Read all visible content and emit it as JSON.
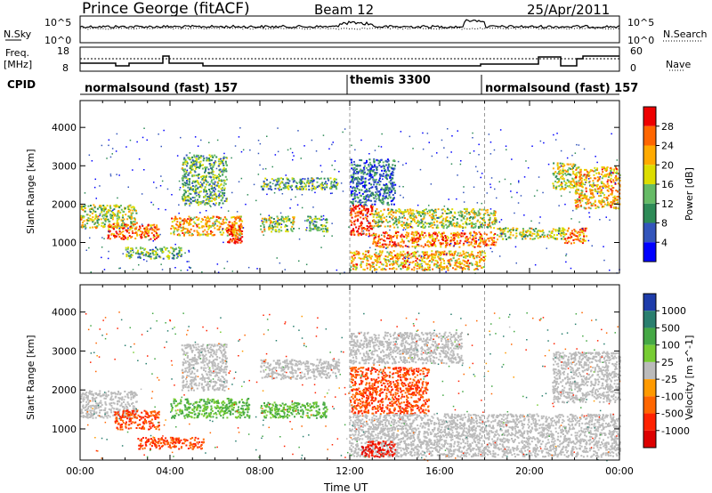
{
  "header": {
    "station": "Prince George (fitACF)",
    "beam": "Beam 12",
    "date": "25/Apr/2011"
  },
  "noise_panel": {
    "left_label": "N.Sky",
    "left_ticks": [
      "10^5",
      "10^0"
    ],
    "right_label": "N.Search",
    "right_ticks": [
      "10^5",
      "10^0"
    ]
  },
  "freq_panel": {
    "left_label_1": "Freq.",
    "left_label_2": "[MHz]",
    "left_ticks": [
      "18",
      "8"
    ],
    "right_label": "Nave",
    "right_ticks": [
      "60",
      "0"
    ]
  },
  "cpid": {
    "label": "CPID",
    "segments": [
      {
        "name": "normalsound (fast) 157",
        "start": 0,
        "end": 12
      },
      {
        "name": "themis 3300",
        "start": 12,
        "end": 18
      },
      {
        "name": "normalsound (fast) 157",
        "start": 18,
        "end": 24
      }
    ]
  },
  "colors": {
    "power": [
      "#0000ff",
      "#3355bb",
      "#2e8b57",
      "#66bb66",
      "#dddd00",
      "#ffaa00",
      "#ff6600",
      "#ee0000"
    ],
    "velocity": [
      "#1e3caa",
      "#2a7f6f",
      "#45a845",
      "#77cc33",
      "#bbbbbb",
      "#ff9a00",
      "#ff6600",
      "#ff2200",
      "#dd0000"
    ]
  },
  "chart_data": [
    {
      "type": "heatmap",
      "title": "",
      "xlabel": "Time UT",
      "ylabel": "Slant Range [km]",
      "xlim": [
        0,
        24
      ],
      "ylim": [
        200,
        4700
      ],
      "x_ticks": [
        "00:00",
        "04:00",
        "08:00",
        "12:00",
        "16:00",
        "20:00",
        "00:00"
      ],
      "y_ticks": [
        "1000",
        "2000",
        "3000",
        "4000"
      ],
      "colorbar": {
        "label": "Power [dB]",
        "ticks": [
          "28",
          "24",
          "20",
          "16",
          "12",
          "8",
          "4"
        ],
        "range": [
          0,
          30
        ]
      },
      "regions": [
        {
          "t0": 0.0,
          "t1": 2.5,
          "r0": 1400,
          "r1": 2000,
          "value": 16
        },
        {
          "t0": 1.2,
          "t1": 3.5,
          "r0": 1100,
          "r1": 1500,
          "value": 24
        },
        {
          "t0": 2.0,
          "t1": 4.5,
          "r0": 600,
          "r1": 900,
          "value": 12
        },
        {
          "t0": 4.0,
          "t1": 7.2,
          "r0": 1200,
          "r1": 1700,
          "value": 20
        },
        {
          "t0": 6.5,
          "t1": 7.2,
          "r0": 1000,
          "r1": 1500,
          "value": 28
        },
        {
          "t0": 4.5,
          "t1": 6.5,
          "r0": 2000,
          "r1": 3300,
          "value": 12
        },
        {
          "t0": 8.0,
          "t1": 11.5,
          "r0": 2400,
          "r1": 2700,
          "value": 12
        },
        {
          "t0": 8.0,
          "t1": 9.5,
          "r0": 1300,
          "r1": 1700,
          "value": 16
        },
        {
          "t0": 10.0,
          "t1": 11.0,
          "r0": 1300,
          "r1": 1700,
          "value": 12
        },
        {
          "t0": 12.0,
          "t1": 13.0,
          "r0": 1200,
          "r1": 2000,
          "value": 28
        },
        {
          "t0": 12.0,
          "t1": 14.0,
          "r0": 2000,
          "r1": 3200,
          "value": 8
        },
        {
          "t0": 13.0,
          "t1": 18.5,
          "r0": 1400,
          "r1": 1900,
          "value": 16
        },
        {
          "t0": 13.0,
          "t1": 18.5,
          "r0": 900,
          "r1": 1300,
          "value": 24
        },
        {
          "t0": 12.0,
          "t1": 18.0,
          "r0": 300,
          "r1": 800,
          "value": 20
        },
        {
          "t0": 18.5,
          "t1": 21.5,
          "r0": 1100,
          "r1": 1400,
          "value": 16
        },
        {
          "t0": 21.0,
          "t1": 22.0,
          "r0": 2400,
          "r1": 3100,
          "value": 16
        },
        {
          "t0": 22.0,
          "t1": 24.0,
          "r0": 1900,
          "r1": 3000,
          "value": 20
        },
        {
          "t0": 21.5,
          "t1": 22.5,
          "r0": 1000,
          "r1": 1400,
          "value": 24
        }
      ]
    },
    {
      "type": "heatmap",
      "title": "",
      "xlabel": "Time UT",
      "ylabel": "Slant Range [km]",
      "xlim": [
        0,
        24
      ],
      "ylim": [
        200,
        4700
      ],
      "x_ticks": [
        "00:00",
        "04:00",
        "08:00",
        "12:00",
        "16:00",
        "20:00",
        "00:00"
      ],
      "y_ticks": [
        "1000",
        "2000",
        "3000",
        "4000"
      ],
      "colorbar": {
        "label": "Velocity [m s^-1]",
        "ticks": [
          "1000",
          "500",
          "100",
          "25",
          "-25",
          "-100",
          "-500",
          "-1000"
        ]
      },
      "regions": [
        {
          "t0": 0.0,
          "t1": 2.5,
          "r0": 1300,
          "r1": 2000,
          "value": 0
        },
        {
          "t0": 1.5,
          "t1": 3.5,
          "r0": 1000,
          "r1": 1500,
          "value": -500
        },
        {
          "t0": 2.5,
          "t1": 5.5,
          "r0": 500,
          "r1": 800,
          "value": -500
        },
        {
          "t0": 4.0,
          "t1": 7.5,
          "r0": 1300,
          "r1": 1800,
          "value": 100
        },
        {
          "t0": 4.5,
          "t1": 6.5,
          "r0": 2000,
          "r1": 3200,
          "value": 0
        },
        {
          "t0": 8.0,
          "t1": 11.5,
          "r0": 2300,
          "r1": 2800,
          "value": 0
        },
        {
          "t0": 8.0,
          "t1": 11.0,
          "r0": 1300,
          "r1": 1700,
          "value": 100
        },
        {
          "t0": 12.0,
          "t1": 15.5,
          "r0": 1400,
          "r1": 2600,
          "value": -500
        },
        {
          "t0": 12.0,
          "t1": 24.0,
          "r0": 300,
          "r1": 1400,
          "value": 0
        },
        {
          "t0": 12.5,
          "t1": 14.0,
          "r0": 300,
          "r1": 700,
          "value": -1000
        },
        {
          "t0": 12.0,
          "t1": 17.0,
          "r0": 2700,
          "r1": 3500,
          "value": 0
        },
        {
          "t0": 21.0,
          "t1": 24.0,
          "r0": 1700,
          "r1": 3000,
          "value": 0
        }
      ]
    }
  ]
}
